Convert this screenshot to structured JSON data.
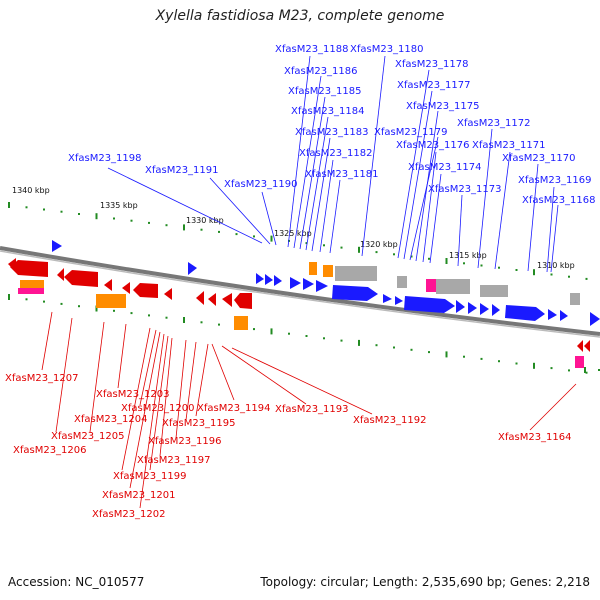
{
  "title": "Xylella fastidiosa M23, complete genome",
  "footer": {
    "accession": "Accession: NC_010577",
    "topology": "Topology: circular; Length: 2,535,690 bp; Genes: 2,218"
  },
  "scale_labels": [
    "1340 kbp",
    "1335 kbp",
    "1330 kbp",
    "1325 kbp",
    "1320 kbp",
    "1315 kbp",
    "1310 kbp"
  ],
  "top_labels": [
    "XfasM23_1188",
    "XfasM23_1180",
    "XfasM23_1186",
    "XfasM23_1178",
    "XfasM23_1185",
    "XfasM23_1177",
    "XfasM23_1184",
    "XfasM23_1175",
    "XfasM23_1183",
    "XfasM23_1179",
    "XfasM23_1172",
    "XfasM23_1176",
    "XfasM23_1171",
    "XfasM23_1182",
    "XfasM23_1198",
    "XfasM23_1170",
    "XfasM23_1191",
    "XfasM23_1174",
    "XfasM23_1181",
    "XfasM23_1190",
    "XfasM23_1169",
    "XfasM23_1173",
    "XfasM23_1168"
  ],
  "bottom_labels": [
    "XfasM23_1207",
    "XfasM23_1203",
    "XfasM23_1200",
    "XfasM23_1194",
    "XfasM23_1193",
    "XfasM23_1204",
    "XfasM23_1192",
    "XfasM23_1195",
    "XfasM23_1205",
    "XfasM23_1196",
    "XfasM23_1164",
    "XfasM23_1206",
    "XfasM23_1197",
    "XfasM23_1199",
    "XfasM23_1201",
    "XfasM23_1202"
  ],
  "colors": {
    "forward_gene": "#1a1aff",
    "reverse_gene": "#e00000",
    "rna_orange": "#ff8c00",
    "pseudo_gray": "#a8a8a8",
    "pink": "#ff1493",
    "tick_green": "#228b22",
    "backbone": "#808080"
  }
}
